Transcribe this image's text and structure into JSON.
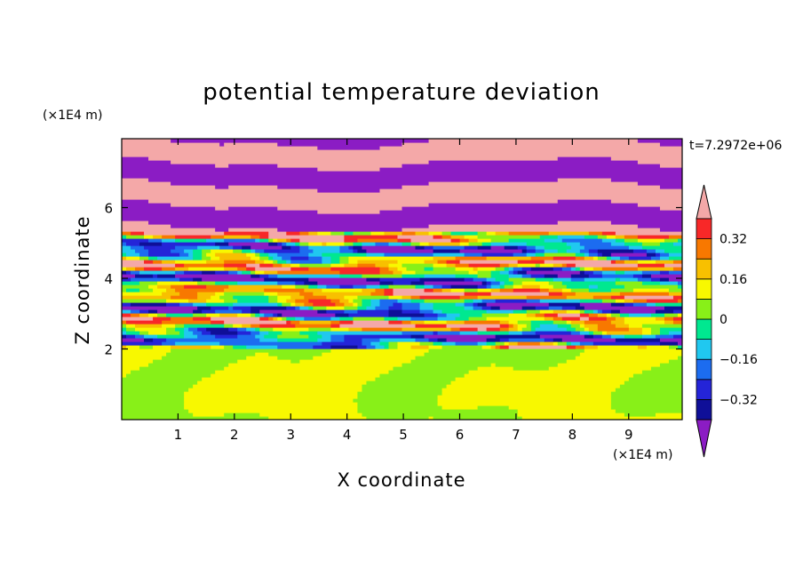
{
  "chart_data": {
    "type": "heatmap",
    "title": "potential temperature deviation",
    "xlabel": "X coordinate",
    "ylabel": "Z coordinate",
    "x_unit": "(×1E4 m)",
    "y_unit": "(×1E4 m)",
    "time_label": "t=7.2972e+06",
    "xlim": [
      0,
      9.95
    ],
    "ylim": [
      0,
      7.95
    ],
    "x_ticks": [
      {
        "value": 1,
        "label": "1"
      },
      {
        "value": 2,
        "label": "2"
      },
      {
        "value": 3,
        "label": "3"
      },
      {
        "value": 4,
        "label": "4"
      },
      {
        "value": 5,
        "label": "5"
      },
      {
        "value": 6,
        "label": "6"
      },
      {
        "value": 7,
        "label": "7"
      },
      {
        "value": 8,
        "label": "8"
      },
      {
        "value": 9,
        "label": "9"
      }
    ],
    "y_ticks": [
      {
        "value": 2,
        "label": "2"
      },
      {
        "value": 4,
        "label": "4"
      },
      {
        "value": 6,
        "label": "6"
      }
    ],
    "colorbar": {
      "levels": [
        -0.4,
        -0.32,
        -0.24,
        -0.16,
        -0.08,
        0,
        0.08,
        0.16,
        0.24,
        0.32,
        0.4
      ],
      "colors": [
        "#8b1cc4",
        "#0f0f98",
        "#2424d8",
        "#1c6cf0",
        "#20c8f0",
        "#00e890",
        "#88f018",
        "#f8f800",
        "#f8c000",
        "#f87800",
        "#f82828",
        "#f4a8a8"
      ],
      "tick_labels": [
        {
          "value": 0.32,
          "label": "0.32"
        },
        {
          "value": 0.16,
          "label": "0.16"
        },
        {
          "value": 0,
          "label": "0"
        },
        {
          "value": -0.16,
          "label": "−0.16"
        },
        {
          "value": -0.32,
          "label": "−0.32"
        }
      ]
    },
    "layers": [
      {
        "z_range": [
          0,
          2.0
        ],
        "description_colors": [
          "#88f018",
          "#00e890"
        ],
        "pattern": "smooth"
      },
      {
        "z_range": [
          2.0,
          5.3
        ],
        "pattern": "turbulent"
      },
      {
        "z_range": [
          5.3,
          7.95
        ],
        "description_colors": [
          "#f4a8a8",
          "#8b1cc4"
        ],
        "pattern": "banded"
      }
    ]
  }
}
